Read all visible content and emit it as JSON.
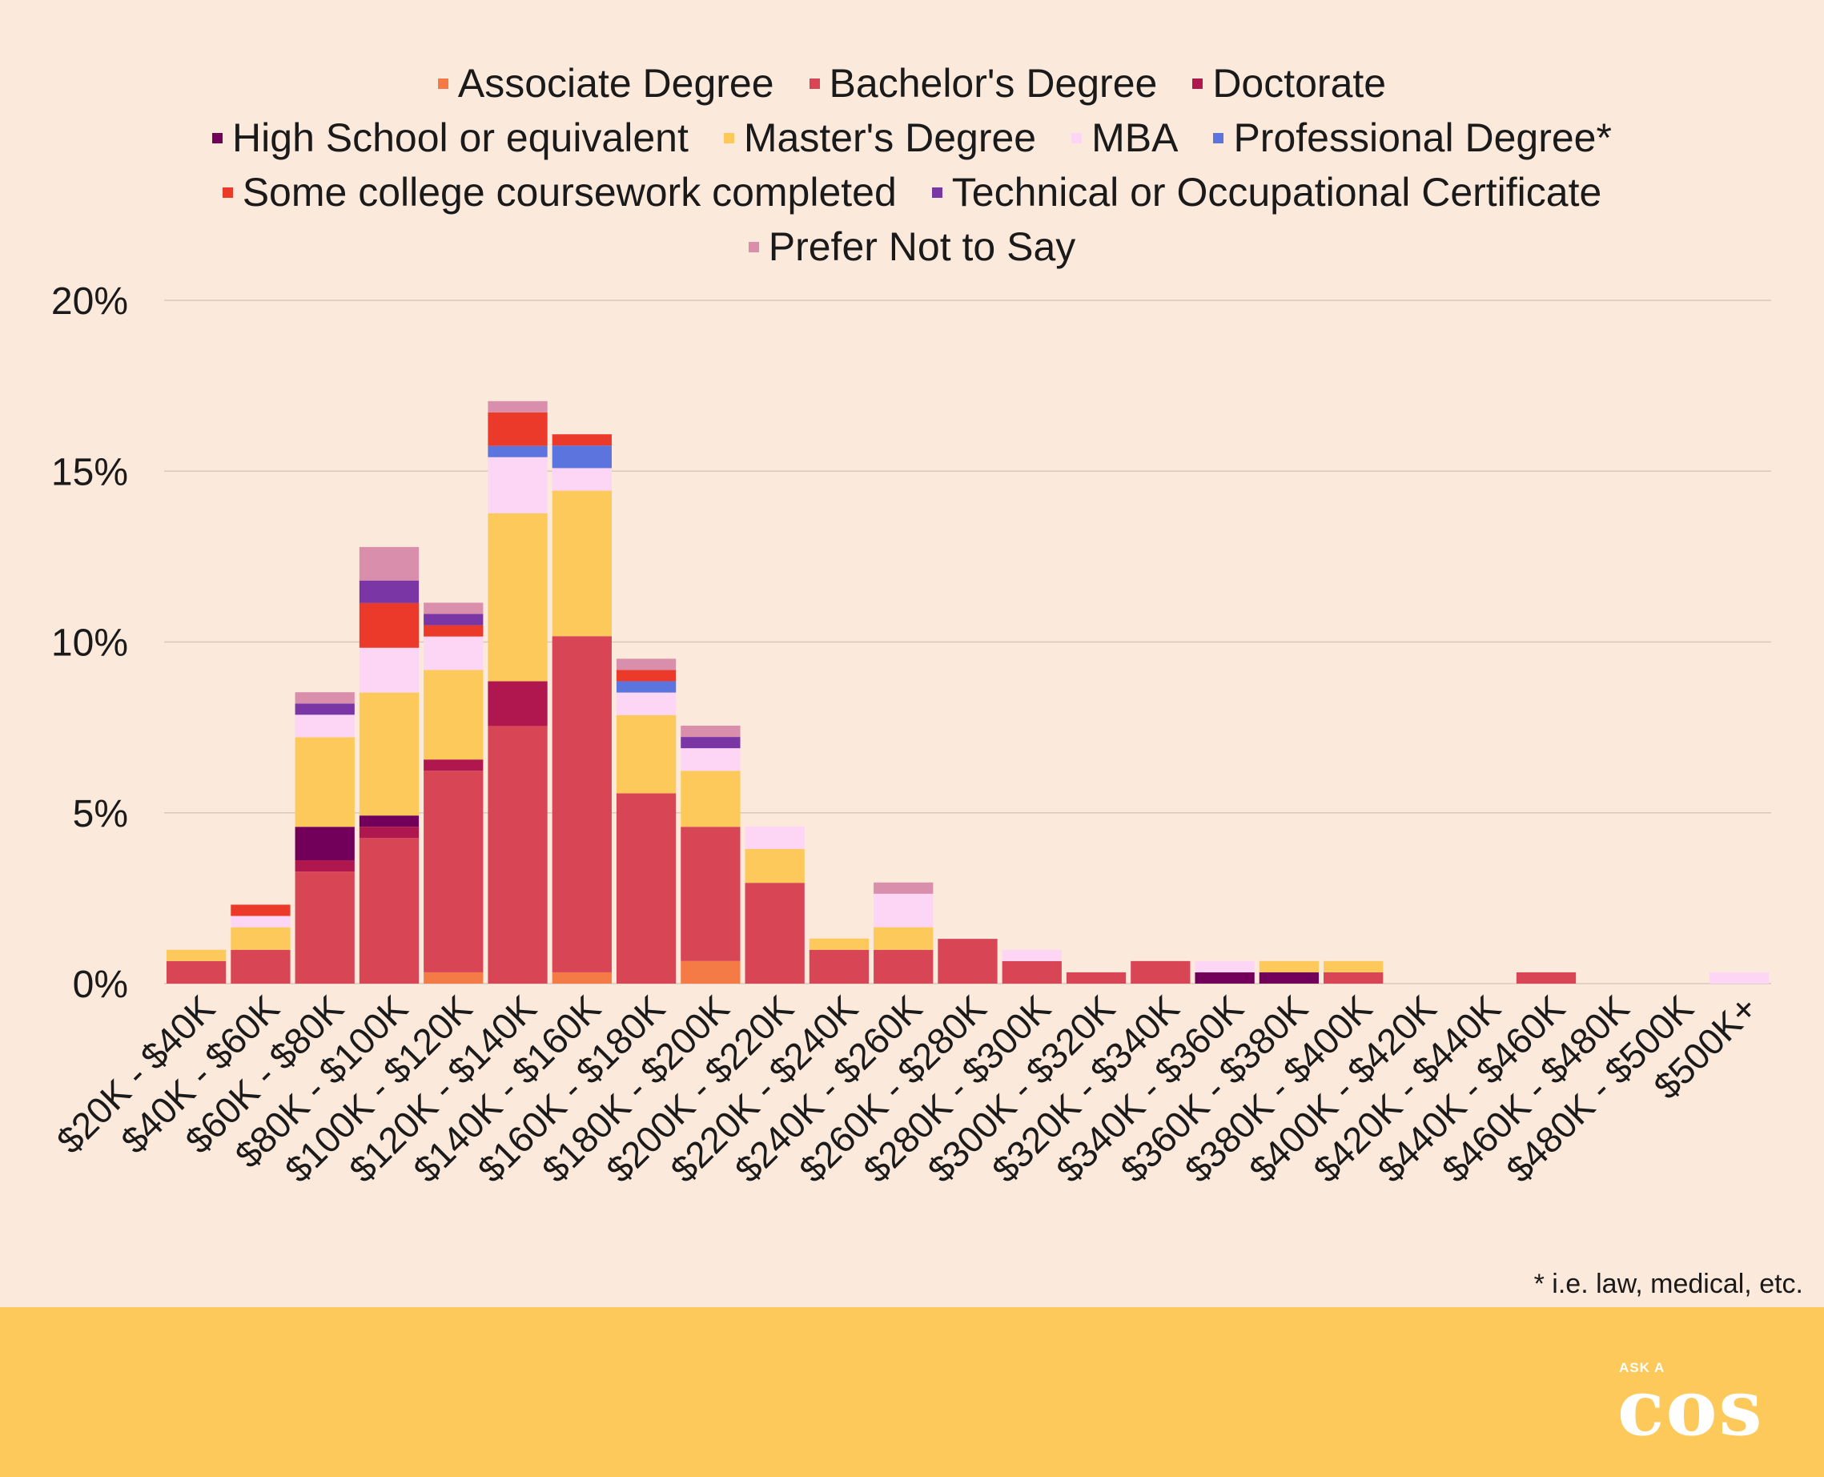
{
  "chart_data": {
    "type": "bar",
    "stacked": true,
    "ylim": [
      0,
      20
    ],
    "yticks": [
      "0%",
      "5%",
      "10%",
      "15%",
      "20%"
    ],
    "grid": true,
    "legend_position": "top-center",
    "categories": [
      "$20K - $40K",
      "$40K - $60K",
      "$60K - $80K",
      "$80K - $100K",
      "$100K - $120K",
      "$120K - $140K",
      "$140K - $160K",
      "$160K - $180K",
      "$180K - $200K",
      "$200K - $220K",
      "$220K - $240K",
      "$240K - $260K",
      "$260K - $280K",
      "$280K - $300K",
      "$300K - $320K",
      "$320K - $340K",
      "$340K - $360K",
      "$360K - $380K",
      "$380K - $400K",
      "$400K - $420K",
      "$420K - $440K",
      "$440K - $460K",
      "$460K - $480K",
      "$480K - $500K",
      "$500K+"
    ],
    "series": [
      {
        "name": "Associate Degree",
        "color": "#f47b45",
        "values": [
          0,
          0,
          0,
          0,
          0.33,
          0,
          0.33,
          0,
          0.66,
          0,
          0,
          0,
          0,
          0,
          0,
          0,
          0,
          0,
          0,
          0,
          0,
          0,
          0,
          0,
          0
        ]
      },
      {
        "name": "Bachelor's Degree",
        "color": "#d84655",
        "values": [
          0.66,
          0.99,
          3.28,
          4.26,
          5.9,
          7.54,
          9.84,
          5.57,
          3.93,
          2.95,
          0.99,
          0.99,
          1.31,
          0.66,
          0.33,
          0.66,
          0,
          0,
          0.33,
          0,
          0,
          0.33,
          0,
          0,
          0
        ]
      },
      {
        "name": "Doctorate",
        "color": "#b0174e",
        "values": [
          0,
          0,
          0.33,
          0.33,
          0.33,
          1.31,
          0,
          0,
          0,
          0,
          0,
          0,
          0,
          0,
          0,
          0,
          0,
          0,
          0,
          0,
          0,
          0,
          0,
          0,
          0
        ]
      },
      {
        "name": "High School or equivalent",
        "color": "#72005a",
        "values": [
          0,
          0,
          0.98,
          0.33,
          0,
          0,
          0,
          0,
          0,
          0,
          0,
          0,
          0,
          0,
          0,
          0,
          0.33,
          0.33,
          0,
          0,
          0,
          0,
          0,
          0,
          0
        ]
      },
      {
        "name": "Master's Degree",
        "color": "#fdc95a",
        "values": [
          0.33,
          0.66,
          2.62,
          3.6,
          2.62,
          4.92,
          4.26,
          2.29,
          1.64,
          0.99,
          0.33,
          0.66,
          0,
          0,
          0,
          0,
          0,
          0.33,
          0.33,
          0,
          0,
          0,
          0,
          0,
          0
        ]
      },
      {
        "name": "MBA",
        "color": "#fdd6f5",
        "values": [
          0,
          0.33,
          0.66,
          1.31,
          0.98,
          1.64,
          0.66,
          0.66,
          0.66,
          0.66,
          0,
          0.98,
          0,
          0.33,
          0,
          0,
          0.33,
          0,
          0,
          0,
          0,
          0,
          0,
          0,
          0.33
        ]
      },
      {
        "name": "Professional Degree*",
        "color": "#5b74de",
        "values": [
          0,
          0,
          0,
          0,
          0,
          0.33,
          0.66,
          0.33,
          0,
          0,
          0,
          0,
          0,
          0,
          0,
          0,
          0,
          0,
          0,
          0,
          0,
          0,
          0,
          0,
          0
        ]
      },
      {
        "name": "Some college coursework completed",
        "color": "#ec3a2a",
        "values": [
          0,
          0.33,
          0,
          1.31,
          0.33,
          0.98,
          0.33,
          0.33,
          0,
          0,
          0,
          0,
          0,
          0,
          0,
          0,
          0,
          0,
          0,
          0,
          0,
          0,
          0,
          0,
          0
        ]
      },
      {
        "name": "Technical or Occupational Certificate",
        "color": "#7936a4",
        "values": [
          0,
          0,
          0.33,
          0.66,
          0.33,
          0,
          0,
          0,
          0.33,
          0,
          0,
          0,
          0,
          0,
          0,
          0,
          0,
          0,
          0,
          0,
          0,
          0,
          0,
          0,
          0
        ]
      },
      {
        "name": "Prefer Not to Say",
        "color": "#d98fac",
        "values": [
          0,
          0,
          0.33,
          0.98,
          0.33,
          0.33,
          0,
          0.33,
          0.33,
          0,
          0,
          0.33,
          0,
          0,
          0,
          0,
          0,
          0,
          0,
          0,
          0,
          0,
          0,
          0,
          0
        ]
      }
    ]
  },
  "footnote": "* i.e. law, medical, etc.",
  "logo": {
    "small": "ASK A",
    "big": "cos"
  },
  "colors": {
    "background": "#fbe9dc",
    "footer": "#fdc95a",
    "grid": "#d9c8bc"
  }
}
